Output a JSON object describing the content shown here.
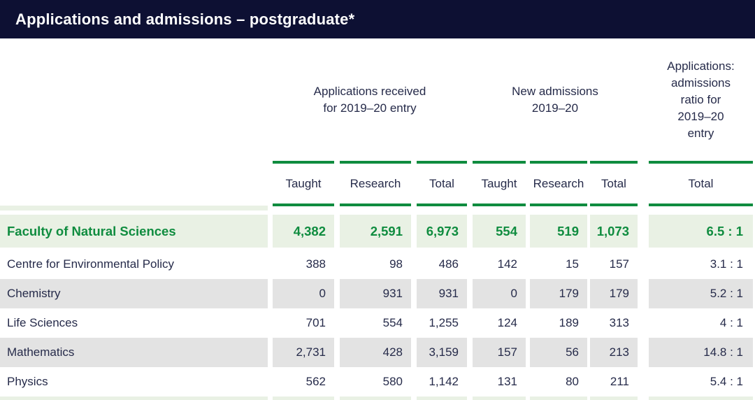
{
  "title_bar": {
    "title": "Applications and admissions – postgraduate*"
  },
  "colors": {
    "navy_bar": "#0d1033",
    "accent_green": "#0f8c3f",
    "highlight_row_bg": "#e9f1e4",
    "striped_row_bg": "#e3e3e3",
    "body_text": "#262b4a"
  },
  "header": {
    "groups": [
      {
        "name": "applications-received",
        "lines": [
          "Applications received",
          "for 2019–20 entry"
        ]
      },
      {
        "name": "new-admissions",
        "lines": [
          "New admissions",
          "2019–20"
        ]
      },
      {
        "name": "applications-admissions-ratio",
        "lines": [
          "Applications:",
          "admissions",
          "ratio for",
          "2019–20",
          "entry"
        ]
      }
    ],
    "columns": [
      "Taught",
      "Research",
      "Total",
      "Taught",
      "Research",
      "Total",
      "Total"
    ]
  },
  "table": {
    "rows": [
      {
        "label": "Faculty of Natural Sciences",
        "style": "highlight",
        "values": [
          "4,382",
          "2,591",
          "6,973",
          "554",
          "519",
          "1,073",
          "6.5 : 1"
        ]
      },
      {
        "label": "Centre for Environmental Policy",
        "style": "plain",
        "values": [
          "388",
          "98",
          "486",
          "142",
          "15",
          "157",
          "3.1 : 1"
        ]
      },
      {
        "label": "Chemistry",
        "style": "striped",
        "values": [
          "0",
          "931",
          "931",
          "0",
          "179",
          "179",
          "5.2 : 1"
        ]
      },
      {
        "label": "Life Sciences",
        "style": "plain",
        "values": [
          "701",
          "554",
          "1,255",
          "124",
          "189",
          "313",
          "4 : 1"
        ]
      },
      {
        "label": "Mathematics",
        "style": "striped",
        "values": [
          "2,731",
          "428",
          "3,159",
          "157",
          "56",
          "213",
          "14.8 : 1"
        ]
      },
      {
        "label": "Physics",
        "style": "plain",
        "values": [
          "562",
          "580",
          "1,142",
          "131",
          "80",
          "211",
          "5.4 : 1"
        ]
      }
    ]
  }
}
